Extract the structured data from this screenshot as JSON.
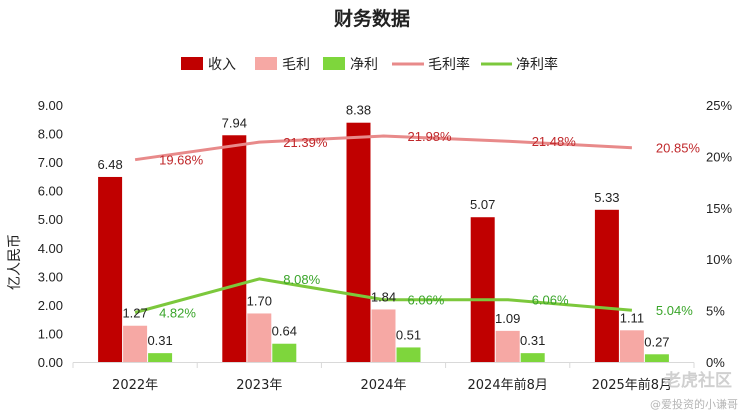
{
  "watermark": {
    "brand": "老虎社区",
    "handle": "@爱投资的小谦哥"
  },
  "colors": {
    "revenue": "#c00000",
    "gross_profit": "#f6a8a4",
    "net_profit": "#7ed63c",
    "gross_margin_line": "#e88a8a",
    "net_margin_line": "#7cc83c",
    "gross_margin_label": "#c0282b",
    "net_margin_label": "#3aa52a"
  },
  "chart_data": {
    "type": "bar",
    "title": "财务数据",
    "ylabel": "亿人民币",
    "categories": [
      "2022年",
      "2023年",
      "2024年",
      "2024年前8月",
      "2025年前8月"
    ],
    "ylim": [
      0,
      9
    ],
    "y_ticks": [
      "0.00",
      "1.00",
      "2.00",
      "3.00",
      "4.00",
      "5.00",
      "6.00",
      "7.00",
      "8.00",
      "9.00"
    ],
    "y2lim": [
      0,
      25
    ],
    "y2_ticks": [
      "0%",
      "5%",
      "10%",
      "15%",
      "20%",
      "25%"
    ],
    "legend_position": "top",
    "grid": false,
    "series": [
      {
        "name": "收入",
        "kind": "bar",
        "values": [
          6.48,
          7.94,
          8.38,
          5.07,
          5.33
        ],
        "labels": [
          "6.48",
          "7.94",
          "8.38",
          "5.07",
          "5.33"
        ]
      },
      {
        "name": "毛利",
        "kind": "bar",
        "values": [
          1.27,
          1.7,
          1.84,
          1.09,
          1.11
        ],
        "labels": [
          "1.27",
          "1.70",
          "1.84",
          "1.09",
          "1.11"
        ]
      },
      {
        "name": "净利",
        "kind": "bar",
        "values": [
          0.31,
          0.64,
          0.51,
          0.31,
          0.27
        ],
        "labels": [
          "0.31",
          "0.64",
          "0.51",
          "0.31",
          "0.27"
        ]
      },
      {
        "name": "毛利率",
        "kind": "line",
        "axis": "right",
        "values": [
          19.68,
          21.39,
          21.98,
          21.48,
          20.85
        ],
        "labels": [
          "19.68%",
          "21.39%",
          "21.98%",
          "21.48%",
          "20.85%"
        ]
      },
      {
        "name": "净利率",
        "kind": "line",
        "axis": "right",
        "values": [
          4.82,
          8.08,
          6.06,
          6.06,
          5.04
        ],
        "labels": [
          "4.82%",
          "8.08%",
          "6.06%",
          "6.06%",
          "5.04%"
        ]
      }
    ]
  }
}
